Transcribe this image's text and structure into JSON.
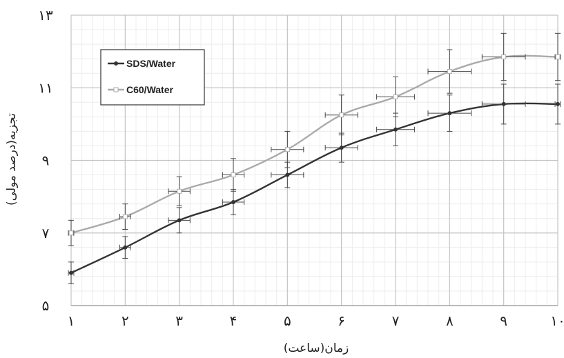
{
  "chart_data": {
    "type": "line",
    "title": "",
    "xlabel": "زمان(ساعت)",
    "ylabel": "تجزیه(درصد مولی)",
    "x": [
      1,
      2,
      3,
      4,
      5,
      6,
      7,
      8,
      9,
      10
    ],
    "x_tick_labels": [
      "١",
      "٢",
      "٣",
      "۴",
      "۵",
      "۶",
      "٧",
      "٨",
      "٩",
      "١٠"
    ],
    "y_tick_values": [
      5,
      7,
      9,
      11,
      13
    ],
    "y_tick_labels": [
      "۵",
      "٧",
      "٩",
      "١١",
      "١٣"
    ],
    "xlim": [
      1,
      10
    ],
    "ylim": [
      5,
      13
    ],
    "grid": true,
    "legend_position": "top-left",
    "series": [
      {
        "name": "SDS/Water",
        "color": "#333333",
        "marker": "circle",
        "values": [
          5.9,
          6.6,
          7.35,
          7.85,
          8.6,
          9.35,
          9.85,
          10.3,
          10.55,
          10.55
        ],
        "y_err": [
          0.3,
          0.3,
          0.35,
          0.35,
          0.35,
          0.4,
          0.45,
          0.5,
          0.55,
          0.55
        ],
        "x_err": [
          0.05,
          0.1,
          0.2,
          0.2,
          0.3,
          0.3,
          0.35,
          0.4,
          0.4,
          0.05
        ]
      },
      {
        "name": "C60/Water",
        "color": "#aaaaaa",
        "marker": "square",
        "values": [
          7.0,
          7.45,
          8.15,
          8.6,
          9.3,
          10.25,
          10.75,
          11.45,
          11.85,
          11.85
        ],
        "y_err": [
          0.35,
          0.35,
          0.4,
          0.45,
          0.5,
          0.55,
          0.55,
          0.6,
          0.65,
          0.65
        ],
        "x_err": [
          0.05,
          0.1,
          0.2,
          0.2,
          0.3,
          0.3,
          0.35,
          0.4,
          0.4,
          0.05
        ]
      }
    ]
  }
}
